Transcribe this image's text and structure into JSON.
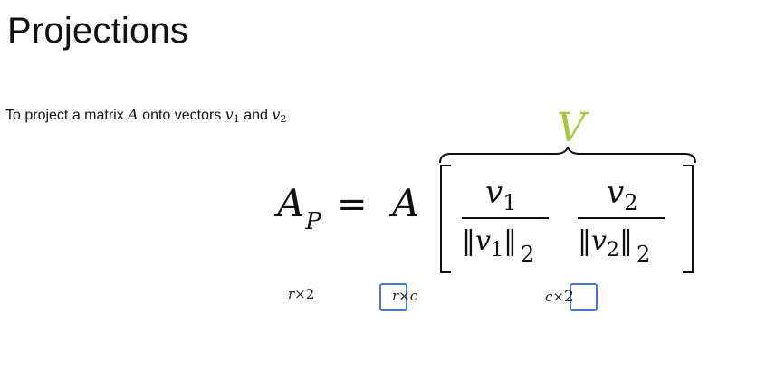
{
  "slide": {
    "title": "Projections",
    "intro": {
      "text_before": "To project a matrix ",
      "matrix_symbol": "A",
      "text_middle": " onto vectors ",
      "vector_1": "v",
      "vector_1_sub": "1",
      "text_and": " and ",
      "vector_2": "v",
      "vector_2_sub": "2"
    }
  },
  "equation": {
    "lhs": "A",
    "lhs_sub": "P",
    "equals": "=",
    "matrix": "A",
    "group_label": "V",
    "group_label_color": "#a5c93a",
    "fraction_1": {
      "numerator": "v",
      "numerator_sub": "1",
      "denominator": "‖v",
      "denominator_sub": "1",
      "denominator_close": "‖",
      "norm_index": "2"
    },
    "fraction_2": {
      "numerator": "v",
      "numerator_sub": "2",
      "denominator": "‖v",
      "denominator_sub": "2",
      "denominator_close": "‖",
      "norm_index": "2"
    }
  },
  "dimensions": {
    "result": {
      "rows": "r",
      "times": "×",
      "cols": "2"
    },
    "matrix": {
      "rows": "r",
      "times": "×",
      "cols": "c"
    },
    "vectors": {
      "rows": "c",
      "times": "×",
      "cols": "2"
    },
    "highlight_color": "#4a78c8"
  }
}
